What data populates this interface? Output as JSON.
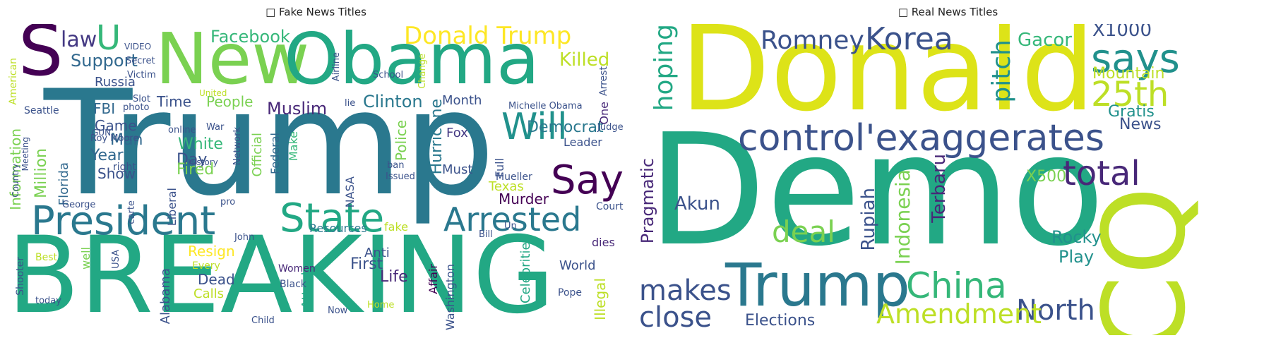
{
  "panels": [
    {
      "title": "□ Fake News Titles",
      "words": [
        {
          "text": "Trump",
          "color": "#2a788e"
        },
        {
          "text": "BREAKING",
          "color": "#22a884"
        },
        {
          "text": "New",
          "color": "#7ad151"
        },
        {
          "text": "Obama",
          "color": "#22a884"
        },
        {
          "text": "S",
          "color": "#440154"
        },
        {
          "text": "U",
          "color": "#35b779"
        },
        {
          "text": "President",
          "color": "#2a788e"
        },
        {
          "text": "State",
          "color": "#22a884"
        },
        {
          "text": "Arrested",
          "color": "#2a788e"
        },
        {
          "text": "Say",
          "color": "#440154"
        },
        {
          "text": "Will",
          "color": "#21918c"
        },
        {
          "text": "Donald Trump",
          "color": "#fde725"
        },
        {
          "text": "Killed",
          "color": "#bddf26"
        },
        {
          "text": "Facebook",
          "color": "#35b779"
        },
        {
          "text": "law",
          "color": "#443983"
        },
        {
          "text": "Support",
          "color": "#31688e"
        },
        {
          "text": "Russia",
          "color": "#3b528b"
        },
        {
          "text": "Clinton",
          "color": "#2a788e"
        },
        {
          "text": "Muslim",
          "color": "#482878"
        },
        {
          "text": "Time",
          "color": "#3b528b"
        },
        {
          "text": "People",
          "color": "#7ad151"
        },
        {
          "text": "Month",
          "color": "#3b528b"
        },
        {
          "text": "FBI",
          "color": "#31688e"
        },
        {
          "text": "Game",
          "color": "#3b528b"
        },
        {
          "text": "Man",
          "color": "#31688e"
        },
        {
          "text": "White",
          "color": "#35b779"
        },
        {
          "text": "Day",
          "color": "#3b528b"
        },
        {
          "text": "Year",
          "color": "#31688e"
        },
        {
          "text": "Show",
          "color": "#3b528b"
        },
        {
          "text": "Fired",
          "color": "#7ad151"
        },
        {
          "text": "Democrat",
          "color": "#2a788e"
        },
        {
          "text": "Leader",
          "color": "#3b528b"
        },
        {
          "text": "Hurricane",
          "color": "#2a788e"
        },
        {
          "text": "Police",
          "color": "#7ad151"
        },
        {
          "text": "Must",
          "color": "#3b528b"
        },
        {
          "text": "Fox",
          "color": "#443983"
        },
        {
          "text": "Murder",
          "color": "#440154"
        },
        {
          "text": "Texas",
          "color": "#bddf26"
        },
        {
          "text": "Resources",
          "color": "#2a788e"
        },
        {
          "text": "fake",
          "color": "#bddf26"
        },
        {
          "text": "Resign",
          "color": "#fde725"
        },
        {
          "text": "Dead",
          "color": "#3b528b"
        },
        {
          "text": "Calls",
          "color": "#bddf26"
        },
        {
          "text": "Anti",
          "color": "#3b528b"
        },
        {
          "text": "First",
          "color": "#3b528b"
        },
        {
          "text": "Life",
          "color": "#482878"
        },
        {
          "text": "World",
          "color": "#3b528b"
        },
        {
          "text": "Illegal",
          "color": "#bddf26"
        },
        {
          "text": "Celebrities",
          "color": "#22a884"
        },
        {
          "text": "Washington",
          "color": "#3b528b"
        },
        {
          "text": "Affair",
          "color": "#440154"
        },
        {
          "text": "Attack",
          "color": "#22a884"
        },
        {
          "text": "Black",
          "color": "#3b528b"
        },
        {
          "text": "Women",
          "color": "#482878"
        },
        {
          "text": "Alabama",
          "color": "#3b528b"
        },
        {
          "text": "Information",
          "color": "#7ad151"
        },
        {
          "text": "Million",
          "color": "#7ad151"
        },
        {
          "text": "Florida",
          "color": "#31688e"
        },
        {
          "text": "American",
          "color": "#bddf26"
        },
        {
          "text": "Seattle",
          "color": "#3b528b"
        },
        {
          "text": "Official",
          "color": "#7ad151"
        },
        {
          "text": "Federal",
          "color": "#31688e"
        },
        {
          "text": "Make",
          "color": "#35b779"
        },
        {
          "text": "NASA",
          "color": "#3b528b"
        },
        {
          "text": "Liberal",
          "color": "#3b528b"
        },
        {
          "text": "Michelle Obama",
          "color": "#3b528b"
        },
        {
          "text": "One",
          "color": "#482878"
        },
        {
          "text": "Arrest",
          "color": "#3b528b"
        },
        {
          "text": "Full",
          "color": "#3b528b"
        },
        {
          "text": "Judge",
          "color": "#3b528b"
        },
        {
          "text": "dies",
          "color": "#482878"
        },
        {
          "text": "Pope",
          "color": "#3b528b"
        },
        {
          "text": "Court",
          "color": "#3b528b"
        },
        {
          "text": "Mueller",
          "color": "#3b528b"
        },
        {
          "text": "Bill",
          "color": "#3b528b"
        },
        {
          "text": "Un",
          "color": "#3b528b"
        },
        {
          "text": "Now",
          "color": "#3b528b"
        },
        {
          "text": "Child",
          "color": "#3b528b"
        },
        {
          "text": "Home",
          "color": "#bddf26"
        },
        {
          "text": "today",
          "color": "#3b528b"
        },
        {
          "text": "Best",
          "color": "#bddf26"
        },
        {
          "text": "Shooter",
          "color": "#3b528b"
        },
        {
          "text": "USA",
          "color": "#3b528b"
        },
        {
          "text": "well",
          "color": "#7ad151"
        },
        {
          "text": "Every",
          "color": "#bddf26"
        },
        {
          "text": "John",
          "color": "#3b528b"
        },
        {
          "text": "carte",
          "color": "#3b528b"
        },
        {
          "text": "pro",
          "color": "#3b528b"
        },
        {
          "text": "George",
          "color": "#3b528b"
        },
        {
          "text": "right",
          "color": "#3b528b"
        },
        {
          "text": "Roy Moore",
          "color": "#3b528b"
        },
        {
          "text": "photo",
          "color": "#3b528b"
        },
        {
          "text": "Slot",
          "color": "#3b528b"
        },
        {
          "text": "online",
          "color": "#3b528b"
        },
        {
          "text": "War",
          "color": "#3b528b"
        },
        {
          "text": "History",
          "color": "#3b528b"
        },
        {
          "text": "GUN",
          "color": "#3b528b"
        },
        {
          "text": "Victim",
          "color": "#3b528b"
        },
        {
          "text": "Secret",
          "color": "#3b528b"
        },
        {
          "text": "VIDEO",
          "color": "#3b528b"
        },
        {
          "text": "United",
          "color": "#bddf26"
        },
        {
          "text": "School",
          "color": "#3b528b"
        },
        {
          "text": "Airline",
          "color": "#3b528b"
        },
        {
          "text": "lie",
          "color": "#3b528b"
        },
        {
          "text": "Change",
          "color": "#bddf26"
        },
        {
          "text": "ban",
          "color": "#3b528b"
        },
        {
          "text": "Issued",
          "color": "#3b528b"
        },
        {
          "text": "Network",
          "color": "#3b528b"
        },
        {
          "text": "Meeting",
          "color": "#3b528b"
        },
        {
          "text": "Country",
          "color": "#3b528b"
        }
      ]
    },
    {
      "title": "□ Real News Titles",
      "words": [
        {
          "text": "Donald",
          "color": "#dde318"
        },
        {
          "text": "Demo",
          "color": "#22a884"
        },
        {
          "text": "CQ",
          "color": "#bddf26"
        },
        {
          "text": "Trump",
          "color": "#2a788e"
        },
        {
          "text": "control'exaggerates",
          "color": "#3b528b"
        },
        {
          "text": "Korea",
          "color": "#3b528b"
        },
        {
          "text": "Romney",
          "color": "#3b528b"
        },
        {
          "text": "says",
          "color": "#21918c"
        },
        {
          "text": "25th",
          "color": "#bddf26"
        },
        {
          "text": "total",
          "color": "#482878"
        },
        {
          "text": "China",
          "color": "#35b779"
        },
        {
          "text": "North",
          "color": "#3b528b"
        },
        {
          "text": "Amendment",
          "color": "#bddf26"
        },
        {
          "text": "makes",
          "color": "#3b528b"
        },
        {
          "text": "close",
          "color": "#3b528b"
        },
        {
          "text": "deal",
          "color": "#7ad151"
        },
        {
          "text": "pitch",
          "color": "#21918c"
        },
        {
          "text": "hoping",
          "color": "#22a884"
        },
        {
          "text": "Pragmatic",
          "color": "#482878"
        },
        {
          "text": "Akun",
          "color": "#3b528b"
        },
        {
          "text": "Gacor",
          "color": "#35b779"
        },
        {
          "text": "X1000",
          "color": "#3b528b"
        },
        {
          "text": "Mountain",
          "color": "#bddf26"
        },
        {
          "text": "Gratis",
          "color": "#21918c"
        },
        {
          "text": "News",
          "color": "#3b528b"
        },
        {
          "text": "X500",
          "color": "#7ad151"
        },
        {
          "text": "Rocky",
          "color": "#21918c"
        },
        {
          "text": "Play",
          "color": "#21918c"
        },
        {
          "text": "Rupiah",
          "color": "#3b528b"
        },
        {
          "text": "Indonesia",
          "color": "#7ad151"
        },
        {
          "text": "Terbaru",
          "color": "#482878"
        },
        {
          "text": "Elections",
          "color": "#3b528b"
        }
      ]
    }
  ]
}
